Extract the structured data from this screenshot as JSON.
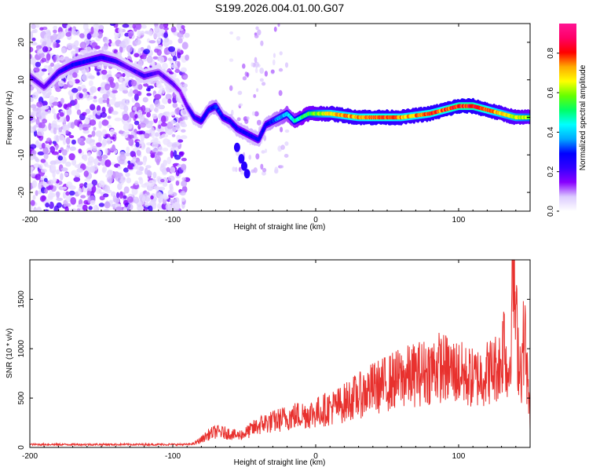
{
  "title": "S199.2026.004.01.00.G07",
  "chart_data": [
    {
      "type": "heatmap",
      "xlabel": "Height of straight line (km)",
      "ylabel": "Frequency (Hz)",
      "xlim": [
        -200,
        150
      ],
      "ylim": [
        -25,
        25
      ],
      "xticks": [
        -200,
        -100,
        0,
        100
      ],
      "yticks": [
        -20,
        -10,
        0,
        10,
        20
      ],
      "colorbar": {
        "label": "Normalized spectral amplitude",
        "range": [
          0.0,
          0.95
        ],
        "ticks": [
          0.0,
          0.2,
          0.4,
          0.6,
          0.8
        ],
        "tick_labels": [
          "0.0",
          "0.2",
          "0.4",
          "0.6",
          "0.8"
        ],
        "colormap": [
          "#ffffff",
          "#dccbff",
          "#8800ff",
          "#3300ff",
          "#0000ff",
          "#00aaff",
          "#00ffff",
          "#00ff66",
          "#66ff00",
          "#ffff00",
          "#ffaa00",
          "#ff0000",
          "#ff0066",
          "#ff1493"
        ]
      },
      "ridge": {
        "x": [
          -200,
          -190,
          -180,
          -170,
          -160,
          -150,
          -140,
          -130,
          -120,
          -110,
          -100,
          -95,
          -90,
          -85,
          -80,
          -75,
          -70,
          -65,
          -60,
          -55,
          -50,
          -45,
          -40,
          -35,
          -30,
          -25,
          -20,
          -15,
          -10,
          -5,
          0,
          10,
          20,
          30,
          40,
          50,
          60,
          70,
          80,
          90,
          100,
          110,
          120,
          130,
          140,
          150
        ],
        "y": [
          11,
          8,
          12,
          14,
          15,
          16,
          15,
          13,
          11,
          12,
          9,
          7,
          3,
          0,
          -1,
          2,
          3,
          0,
          -1,
          -3,
          -4,
          -5,
          -6,
          -2,
          -1,
          0,
          1,
          -1,
          0,
          1,
          1,
          1,
          0.5,
          0,
          0,
          0,
          0,
          0.5,
          1,
          2,
          3,
          3,
          2,
          1,
          0,
          0
        ],
        "amplitude": [
          0.2,
          0.2,
          0.25,
          0.3,
          0.3,
          0.3,
          0.25,
          0.2,
          0.25,
          0.2,
          0.2,
          0.15,
          0.2,
          0.25,
          0.3,
          0.3,
          0.35,
          0.3,
          0.3,
          0.3,
          0.3,
          0.3,
          0.3,
          0.3,
          0.35,
          0.4,
          0.45,
          0.5,
          0.55,
          0.6,
          0.65,
          0.75,
          0.8,
          0.8,
          0.85,
          0.85,
          0.8,
          0.8,
          0.85,
          0.85,
          0.9,
          0.9,
          0.85,
          0.75,
          0.7,
          0.65
        ]
      },
      "secondary_branch": {
        "x": [
          -55,
          -52,
          -50,
          -48
        ],
        "y": [
          -8,
          -11,
          -13,
          -15
        ]
      }
    },
    {
      "type": "line",
      "xlabel": "Height of straight line (km)",
      "ylabel": "SNR (10 * v/v)",
      "xlim": [
        -200,
        150
      ],
      "ylim": [
        0,
        1900
      ],
      "xticks": [
        -200,
        -100,
        0,
        100
      ],
      "yticks": [
        0,
        500,
        1000,
        1500
      ],
      "color": "#e8312e",
      "x": [
        -200,
        -190,
        -180,
        -170,
        -160,
        -150,
        -140,
        -130,
        -120,
        -110,
        -100,
        -95,
        -90,
        -85,
        -80,
        -75,
        -70,
        -65,
        -60,
        -55,
        -50,
        -45,
        -40,
        -35,
        -30,
        -25,
        -20,
        -15,
        -10,
        -5,
        0,
        5,
        10,
        15,
        20,
        25,
        30,
        35,
        40,
        45,
        50,
        55,
        60,
        65,
        70,
        75,
        80,
        85,
        90,
        95,
        100,
        105,
        110,
        115,
        120,
        125,
        130,
        132,
        134,
        136,
        138,
        140,
        142,
        144,
        146,
        148,
        150
      ],
      "y": [
        30,
        30,
        30,
        30,
        30,
        30,
        30,
        30,
        30,
        30,
        30,
        30,
        30,
        40,
        80,
        130,
        160,
        150,
        140,
        120,
        140,
        180,
        220,
        250,
        260,
        280,
        300,
        320,
        330,
        340,
        350,
        380,
        400,
        420,
        450,
        500,
        520,
        560,
        600,
        620,
        650,
        680,
        700,
        720,
        740,
        760,
        780,
        820,
        800,
        780,
        760,
        720,
        700,
        720,
        760,
        800,
        850,
        1200,
        700,
        900,
        1890,
        1300,
        900,
        800,
        1200,
        700,
        300
      ]
    }
  ]
}
